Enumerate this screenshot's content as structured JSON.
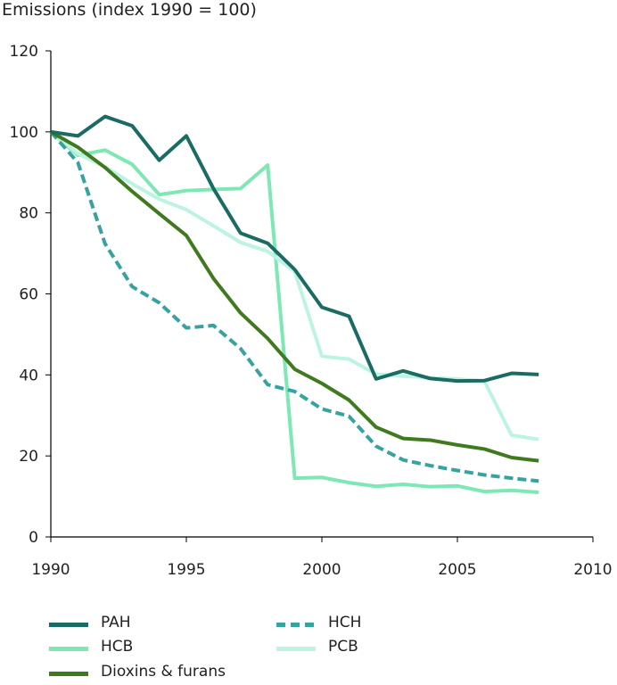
{
  "chart_data": {
    "type": "line",
    "title": "",
    "ylabel": "Emissions (index 1990 = 100)",
    "xlabel": "",
    "xlim": [
      1990,
      2010
    ],
    "ylim": [
      0,
      120
    ],
    "xticks": [
      1990,
      1995,
      2000,
      2005,
      2010
    ],
    "yticks": [
      0,
      20,
      40,
      60,
      80,
      100,
      120
    ],
    "grid": false,
    "legend_placement": "bottom",
    "x": [
      1990,
      1991,
      1992,
      1993,
      1994,
      1995,
      1996,
      1997,
      1998,
      1999,
      2000,
      2001,
      2002,
      2003,
      2004,
      2005,
      2006,
      2007,
      2008
    ],
    "series": [
      {
        "name": "PAH",
        "color": "#1a6b63",
        "style": "solid",
        "values": [
          100,
          99,
          103.8,
          101.5,
          93,
          99,
          86,
          75,
          72.5,
          66,
          56.7,
          54.5,
          39,
          41,
          39.1,
          38.5,
          38.6,
          40.4,
          40.1
        ]
      },
      {
        "name": "HCB",
        "color": "#7de8b4",
        "style": "solid",
        "values": [
          100,
          94.2,
          95.5,
          92,
          84.5,
          85.5,
          85.8,
          86,
          91.8,
          14.5,
          14.7,
          13.4,
          12.5,
          13,
          12.4,
          12.6,
          11.2,
          11.5,
          11
        ]
      },
      {
        "name": "Dioxins & furans",
        "color": "#3f7a1e",
        "style": "solid",
        "values": [
          100,
          96.2,
          91.2,
          85.3,
          79.8,
          74.4,
          63.8,
          55.3,
          49,
          41.4,
          37.9,
          33.8,
          27.1,
          24.3,
          23.9,
          22.7,
          21.7,
          19.6,
          18.8
        ]
      },
      {
        "name": "HCH",
        "color": "#37a3a0",
        "style": "dashed",
        "values": [
          100,
          92.4,
          72.4,
          61.8,
          57.8,
          51.6,
          52.2,
          46.5,
          37.6,
          35.9,
          31.6,
          29.8,
          22.4,
          19,
          17.6,
          16.4,
          15.3,
          14.5,
          13.8
        ]
      },
      {
        "name": "PCB",
        "color": "#bdf3e1",
        "style": "solid",
        "values": [
          100,
          94.6,
          91.4,
          87.2,
          83.4,
          80.8,
          76.8,
          72.7,
          70.5,
          65.5,
          44.6,
          43.9,
          40.2,
          39.7,
          39.3,
          39,
          38.4,
          25.1,
          24.1
        ]
      }
    ]
  }
}
